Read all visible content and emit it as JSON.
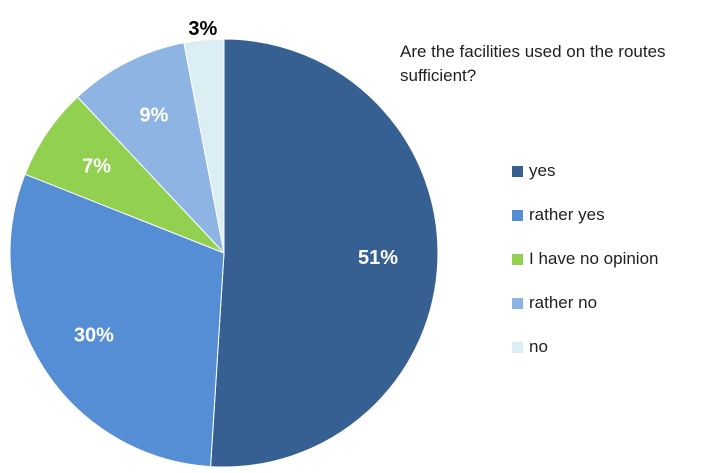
{
  "chart_data": {
    "type": "pie",
    "title": "Are the facilities used on the routes sufficient?",
    "categories": [
      "yes",
      "rather yes",
      "I have no opinion",
      "rather no",
      "no"
    ],
    "values": [
      51,
      30,
      7,
      9,
      3
    ],
    "data_labels": [
      "51%",
      "30%",
      "7%",
      "9%",
      "3%"
    ],
    "colors": [
      "#376092",
      "#558ED5",
      "#92D050",
      "#8EB4E3",
      "#DBEEF4"
    ],
    "label_colors": [
      "#ffffff",
      "#ffffff",
      "#ffffff",
      "#ffffff",
      "#000000"
    ],
    "legend_position": "right",
    "start_angle": "12 o'clock",
    "direction": "clockwise"
  }
}
